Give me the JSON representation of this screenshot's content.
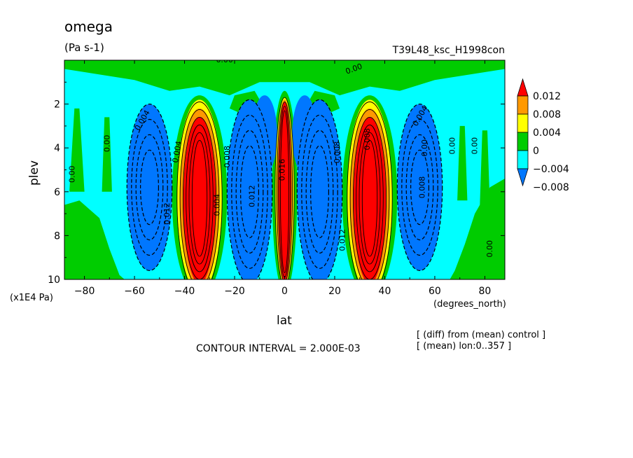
{
  "figure": {
    "title": "omega",
    "units": "(Pa s-1)",
    "experiment": "T39L48_ksc_H1998con",
    "x_axis_name": "lat",
    "x_axis_units": "(degrees_north)",
    "y_axis_name": "plev",
    "y_axis_units": "(x1E4 Pa)",
    "contour_interval": "CONTOUR INTERVAL = 2.000E-03",
    "notes": [
      "[ (diff) from (mean) control ]",
      "[ (mean) lon:0..357 ]"
    ]
  },
  "chart_data": {
    "type": "heatmap",
    "subtype": "filled contour (latitude-pressure cross section)",
    "title": "omega",
    "units": "(Pa s-1)",
    "xlabel": "lat",
    "ylabel": "plev",
    "x_range": [
      -88,
      88
    ],
    "y_range": [
      10,
      0
    ],
    "y_inverted": true,
    "x_ticks": [
      -80,
      -60,
      -40,
      -20,
      0,
      20,
      40,
      60,
      80
    ],
    "x_tick_labels": [
      "−80",
      "−60",
      "−40",
      "−20",
      "0",
      "20",
      "40",
      "60",
      "80"
    ],
    "y_ticks": [
      2,
      4,
      6,
      8,
      10
    ],
    "y_tick_labels": [
      "2",
      "4",
      "6",
      "8",
      "10"
    ],
    "contour_interval": 0.002,
    "legend": {
      "placement": "right",
      "levels": [
        0.012,
        0.008,
        0.004,
        0,
        -0.004,
        -0.008
      ],
      "labels": [
        "0.012",
        "0.008",
        "0.004",
        "0",
        "−0.004",
        "−0.008"
      ],
      "colors": [
        "#ff0000",
        "#ff9900",
        "#ffff00",
        "#00cc00",
        "#00ffff",
        "#0077ff"
      ]
    },
    "color_bands": [
      {
        "name": "> 0.012",
        "color": "#ff0000"
      },
      {
        "name": "0.008 to 0.012",
        "color": "#ff9900"
      },
      {
        "name": "0.004 to 0.008",
        "color": "#ffff00"
      },
      {
        "name": "0 to 0.004",
        "color": "#00cc00"
      },
      {
        "name": "-0.004 to 0",
        "color": "#00ffff"
      },
      {
        "name": "-0.008 to -0.004",
        "color": "#0077ff"
      }
    ],
    "features": [
      {
        "kind": "max",
        "lat": 0,
        "plev_range": [
          2,
          10
        ],
        "value": 0.016
      },
      {
        "kind": "max",
        "lat": -34,
        "plev_range": [
          3,
          10
        ],
        "value": 0.014
      },
      {
        "kind": "max",
        "lat": 34,
        "plev_range": [
          3,
          10
        ],
        "value": 0.014
      },
      {
        "kind": "min",
        "lat": -54,
        "plev_range": [
          2,
          9.5
        ],
        "value": -0.012
      },
      {
        "kind": "min",
        "lat": -14,
        "plev_range": [
          2,
          10
        ],
        "value": -0.012
      },
      {
        "kind": "min",
        "lat": 14,
        "plev_range": [
          2,
          10
        ],
        "value": -0.012
      },
      {
        "kind": "min",
        "lat": 54,
        "plev_range": [
          2,
          9.5
        ],
        "value": -0.008
      }
    ],
    "contour_labels": [
      "0.00",
      "0.00",
      "0.00",
      "0.00",
      "0.00",
      "0.00",
      "0.00",
      "0.00",
      "0.004",
      "0.004",
      "0.004",
      "0.008",
      "0.008",
      "0.008",
      "0.012",
      "0.012",
      "0.012",
      "0.016",
      "0.008",
      "0.004"
    ]
  }
}
